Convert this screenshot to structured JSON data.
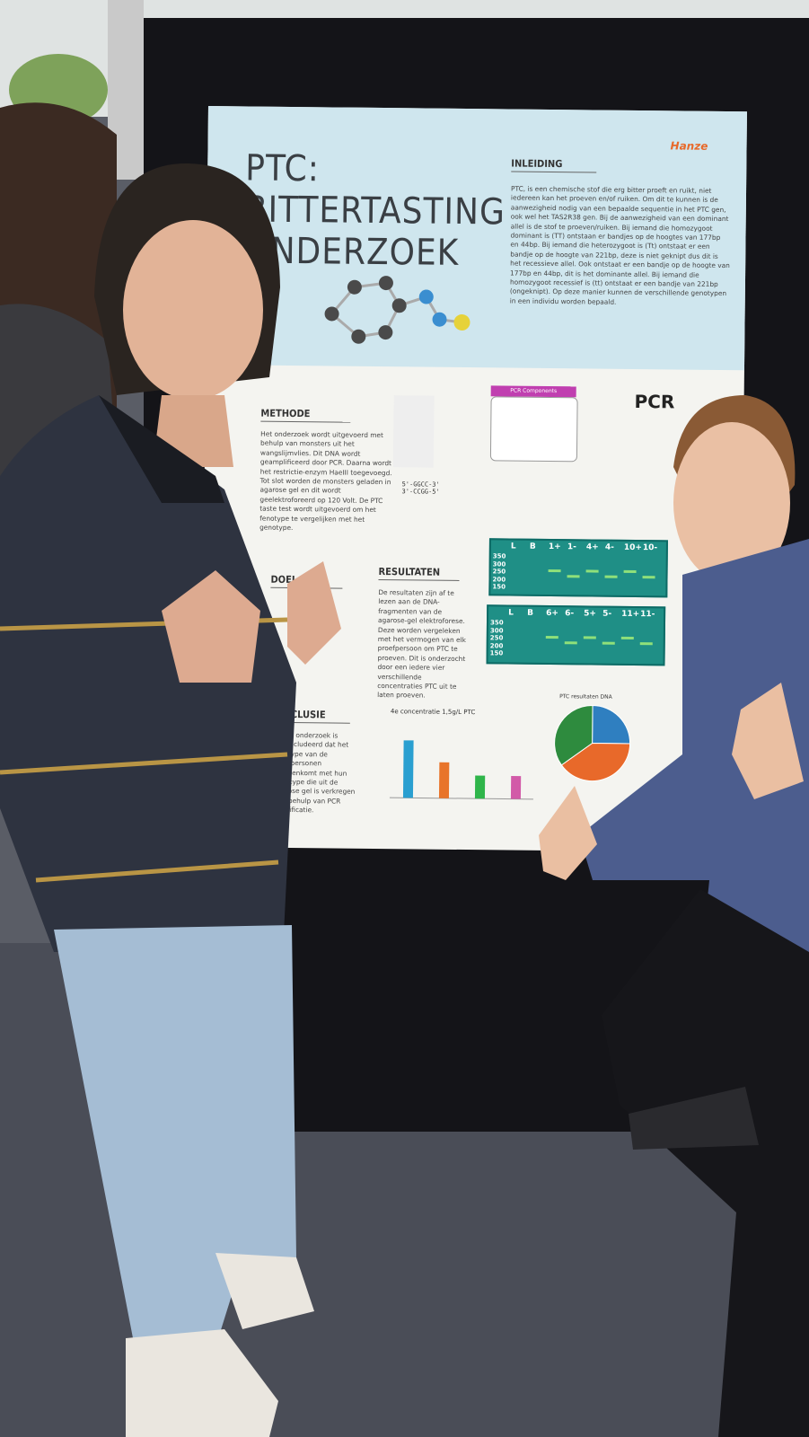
{
  "poster": {
    "title": "PTC: BITTERTASTING ONDERZOEK",
    "logo": "Hanze",
    "intro": {
      "heading": "INLEIDING",
      "body": "PTC, is een chemische stof die erg bitter proeft en ruikt, niet iedereen kan het proeven en/of ruiken. Om dit te kunnen is de aanwezigheid nodig van een bepaalde sequentie in het PTC gen, ook wel het TAS2R38 gen. Bij de aanwezigheid van een dominant allel is de stof te proeven/ruiken. Bij iemand die homozygoot dominant is (TT) ontstaan er bandjes op de hoogtes van 177bp en 44bp. Bij iemand die heterozygoot is (Tt) ontstaat er een bandje op de hoogte van 221bp, deze is niet geknipt dus dit is het recessieve allel. Ook ontstaat er een bandje op de hoogte van 177bp en 44bp, dit is het dominante allel. Bij iemand die homozygoot recessief is (tt) ontstaat er een bandje van 221bp (ongeknipt). Op deze manier kunnen de verschillende genotypen in een individu worden bepaald."
    },
    "method": {
      "heading": "METHODE",
      "body": "Het onderzoek wordt uitgevoerd met behulp van monsters uit het wangslijmvlies. Dit DNA wordt geamplificeerd door PCR. Daarna wordt het restrictie-enzym HaeIII toegevoegd. Tot slot worden de monsters geladen in agarose gel en dit wordt geelektroforeerd op 120 Volt. De PTC taste test wordt uitgevoerd om het fenotype te vergelijken met het genotype."
    },
    "goal": {
      "heading": "DOEL"
    },
    "results": {
      "heading": "RESULTATEN",
      "body": "De resultaten zijn af te lezen aan de DNA-fragmenten van de agarose-gel elektroforese. Deze worden vergeleken met het vermogen van elk proefpersoon om PTC te proeven. Dit is onderzocht door een iedere vier verschillende concentraties PTC uit te laten proeven."
    },
    "conclusion": {
      "heading": "CONCLUSIE",
      "body": "Uit dit onderzoek is geconcludeerd dat het fenotype van de proefpersonen overeenkomt met hun genotype die uit de agarose gel is verkregen met behulp van PCR amplificatie."
    },
    "pcr": {
      "label": "PCR",
      "components": "PCR Components"
    },
    "sequence": [
      "5'-GGCC-3'",
      "3'-CCGG-5'"
    ],
    "gel_top": {
      "lanes": [
        "L",
        "B",
        "1+",
        "1-",
        "4+",
        "4-",
        "10+",
        "10-"
      ],
      "ladder": [
        "350",
        "300",
        "250",
        "200",
        "150"
      ]
    },
    "gel_bottom": {
      "lanes": [
        "L",
        "B",
        "6+",
        "6-",
        "5+",
        "5-",
        "11+",
        "11-"
      ],
      "ladder": [
        "350",
        "300",
        "250",
        "200",
        "150"
      ]
    },
    "bar_chart": {
      "title": "4e concentratie 1,5g/L PTC",
      "values": [
        4,
        2.5,
        1.6,
        1.6
      ],
      "colors": [
        "#2a9fd0",
        "#e8742a",
        "#2fb54a",
        "#d25aa8"
      ],
      "ylim": [
        0,
        5
      ]
    },
    "pie_chart": {
      "title": "PTC resultaten DNA",
      "values": [
        25,
        40,
        35
      ],
      "colors": [
        "#2f7fc0",
        "#e8692a",
        "#2e8b3e"
      ]
    }
  }
}
